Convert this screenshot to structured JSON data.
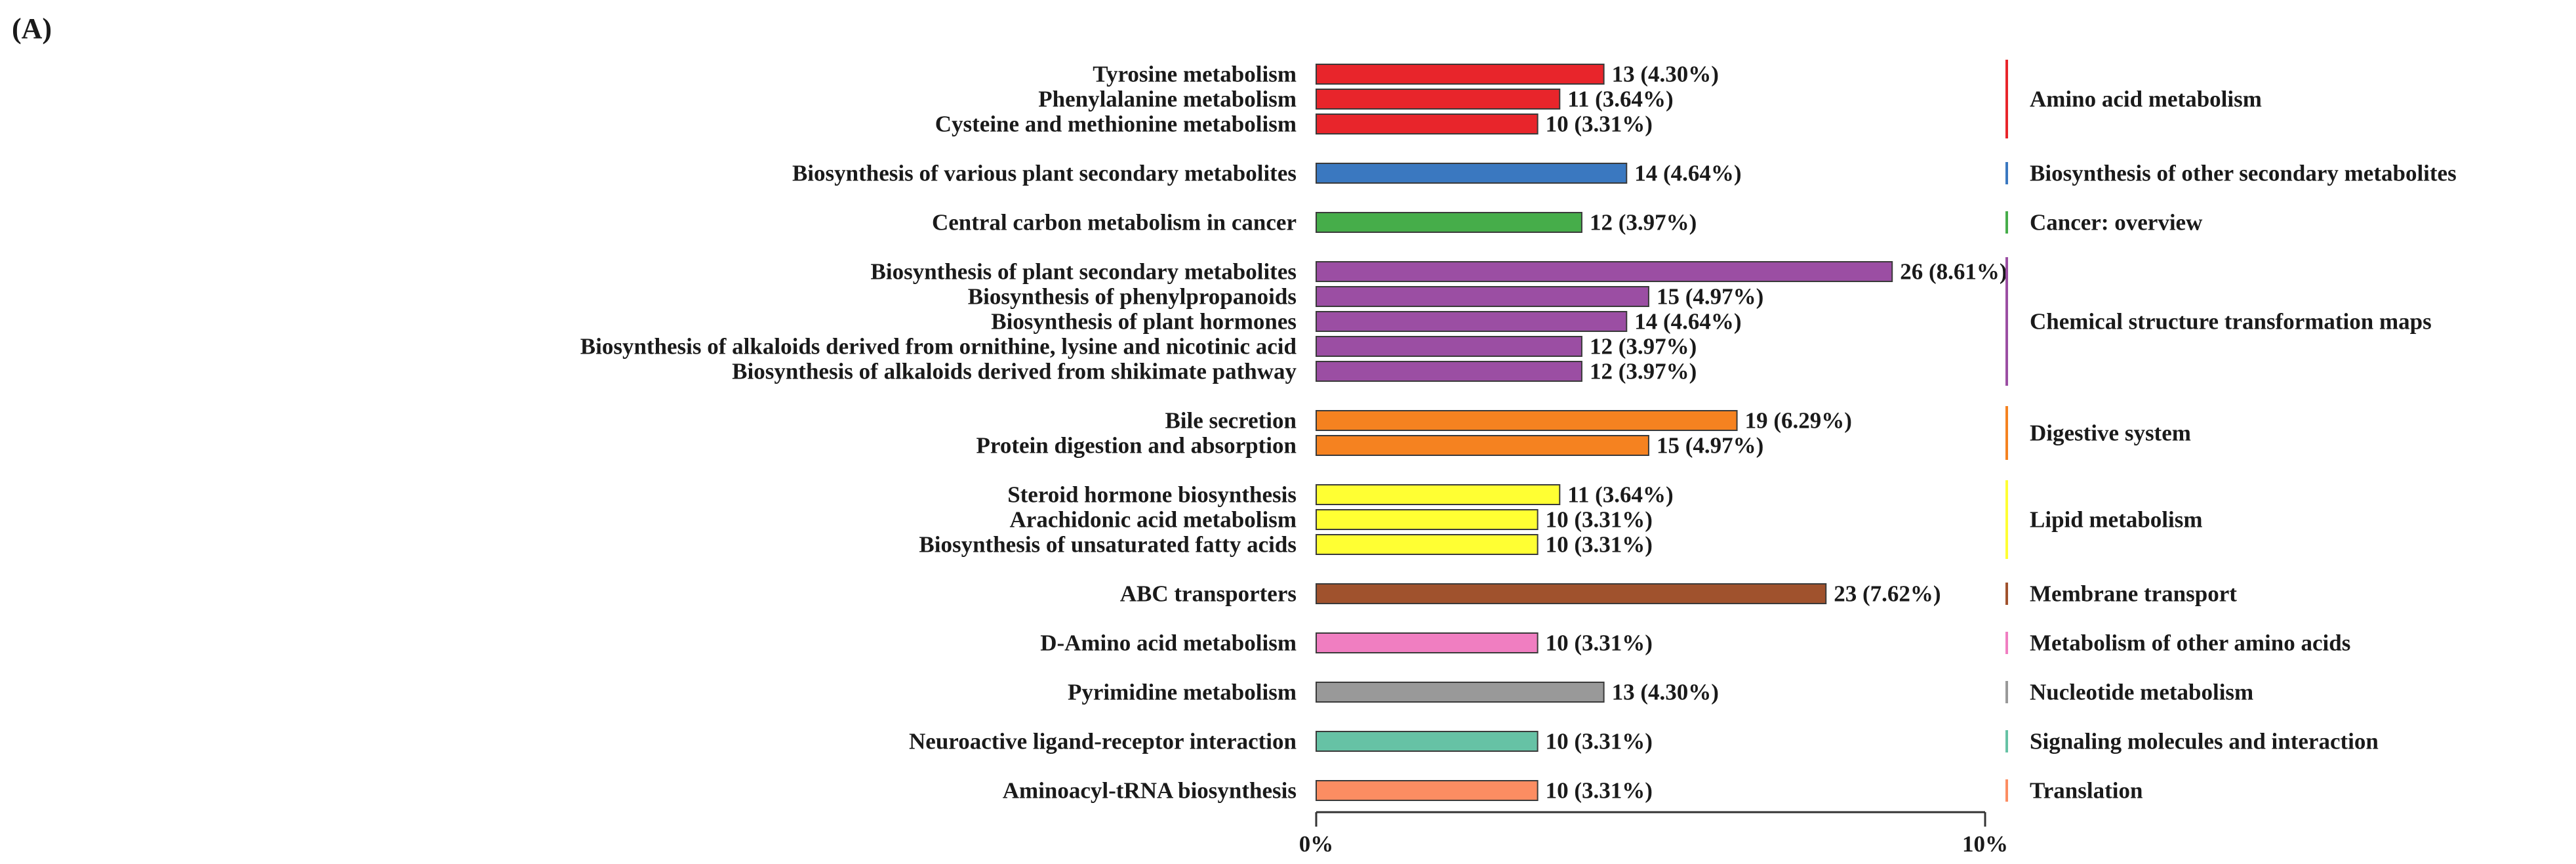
{
  "panel_label": "(A)",
  "chart_data": {
    "type": "bar",
    "orientation": "horizontal",
    "title": "",
    "xlabel": "",
    "ylabel": "",
    "xlim": [
      0,
      10
    ],
    "x_ticks": [
      "0%",
      "10%"
    ],
    "grid": false,
    "groups": [
      {
        "name": "Amino acid metabolism",
        "color": "#e8252b",
        "items": [
          {
            "label": "Tyrosine metabolism",
            "count": 13,
            "percent": 4.3,
            "value_label": "13 (4.30%)"
          },
          {
            "label": "Phenylalanine metabolism",
            "count": 11,
            "percent": 3.64,
            "value_label": "11 (3.64%)"
          },
          {
            "label": "Cysteine and methionine metabolism",
            "count": 10,
            "percent": 3.31,
            "value_label": "10 (3.31%)"
          }
        ]
      },
      {
        "name": "Biosynthesis of other secondary metabolites",
        "color": "#3a78c0",
        "items": [
          {
            "label": "Biosynthesis of various plant secondary metabolites",
            "count": 14,
            "percent": 4.64,
            "value_label": "14 (4.64%)"
          }
        ]
      },
      {
        "name": "Cancer: overview",
        "color": "#46ad4a",
        "items": [
          {
            "label": "Central carbon metabolism in cancer",
            "count": 12,
            "percent": 3.97,
            "value_label": "12 (3.97%)"
          }
        ]
      },
      {
        "name": "Chemical structure transformation maps",
        "color": "#9b4ea3",
        "items": [
          {
            "label": "Biosynthesis of plant secondary metabolites",
            "count": 26,
            "percent": 8.61,
            "value_label": "26 (8.61%)"
          },
          {
            "label": "Biosynthesis of phenylpropanoids",
            "count": 15,
            "percent": 4.97,
            "value_label": "15 (4.97%)"
          },
          {
            "label": "Biosynthesis of plant hormones",
            "count": 14,
            "percent": 4.64,
            "value_label": "14 (4.64%)"
          },
          {
            "label": "Biosynthesis of alkaloids derived from ornithine, lysine and nicotinic acid",
            "count": 12,
            "percent": 3.97,
            "value_label": "12 (3.97%)"
          },
          {
            "label": "Biosynthesis of alkaloids derived from shikimate pathway",
            "count": 12,
            "percent": 3.97,
            "value_label": "12 (3.97%)"
          }
        ]
      },
      {
        "name": "Digestive system",
        "color": "#f58220",
        "items": [
          {
            "label": "Bile secretion",
            "count": 19,
            "percent": 6.29,
            "value_label": "19 (6.29%)"
          },
          {
            "label": "Protein digestion and absorption",
            "count": 15,
            "percent": 4.97,
            "value_label": "15 (4.97%)"
          }
        ]
      },
      {
        "name": "Lipid metabolism",
        "color": "#ffff33",
        "items": [
          {
            "label": "Steroid hormone biosynthesis",
            "count": 11,
            "percent": 3.64,
            "value_label": "11 (3.64%)"
          },
          {
            "label": "Arachidonic acid metabolism",
            "count": 10,
            "percent": 3.31,
            "value_label": "10 (3.31%)"
          },
          {
            "label": "Biosynthesis of unsaturated fatty acids",
            "count": 10,
            "percent": 3.31,
            "value_label": "10 (3.31%)"
          }
        ]
      },
      {
        "name": "Membrane transport",
        "color": "#a0522d",
        "items": [
          {
            "label": "ABC transporters",
            "count": 23,
            "percent": 7.62,
            "value_label": "23 (7.62%)"
          }
        ]
      },
      {
        "name": "Metabolism of other amino acids",
        "color": "#f07ec1",
        "items": [
          {
            "label": "D-Amino acid metabolism",
            "count": 10,
            "percent": 3.31,
            "value_label": "10 (3.31%)"
          }
        ]
      },
      {
        "name": "Nucleotide metabolism",
        "color": "#999999",
        "items": [
          {
            "label": "Pyrimidine metabolism",
            "count": 13,
            "percent": 4.3,
            "value_label": "13 (4.30%)"
          }
        ]
      },
      {
        "name": "Signaling molecules and interaction",
        "color": "#66c2a5",
        "items": [
          {
            "label": "Neuroactive ligand-receptor interaction",
            "count": 10,
            "percent": 3.31,
            "value_label": "10 (3.31%)"
          }
        ]
      },
      {
        "name": "Translation",
        "color": "#fc8d62",
        "items": [
          {
            "label": "Aminoacyl-tRNA biosynthesis",
            "count": 10,
            "percent": 3.31,
            "value_label": "10 (3.31%)"
          }
        ]
      }
    ]
  }
}
